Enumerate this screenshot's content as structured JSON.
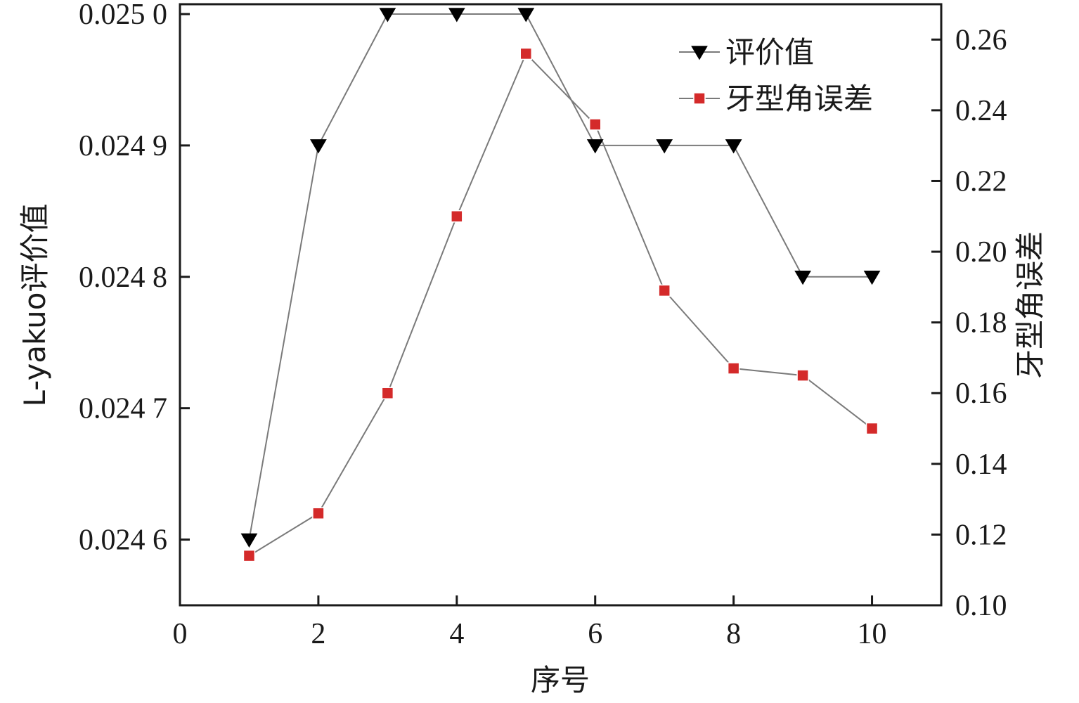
{
  "chart_data": {
    "type": "line",
    "xlabel": "序号",
    "ylabel_left": "L-yakuo评价值",
    "ylabel_right": "牙型角误差",
    "x_ticks": [
      "0",
      "2",
      "4",
      "6",
      "8",
      "10"
    ],
    "y_left_ticks": [
      "0.024 6",
      "0.024 7",
      "0.024 8",
      "0.024 9",
      "0.025 0"
    ],
    "y_right_ticks": [
      "0.10",
      "0.12",
      "0.14",
      "0.16",
      "0.18",
      "0.20",
      "0.22",
      "0.24",
      "0.26"
    ],
    "xlim": [
      0,
      11
    ],
    "ylim_left": [
      0.02455,
      0.0250075
    ],
    "ylim_right": [
      0.1,
      0.27
    ],
    "grid": false,
    "legend_position": "top-right",
    "series": [
      {
        "name": "评价值",
        "axis": "left",
        "marker": "triangle-down",
        "color": "#000000",
        "x": [
          1,
          2,
          3,
          4,
          5,
          6,
          7,
          8,
          9,
          10
        ],
        "values": [
          0.0246,
          0.0249,
          0.025,
          0.025,
          0.025,
          0.0249,
          0.0249,
          0.0249,
          0.0248,
          0.0248
        ]
      },
      {
        "name": "牙型角误差",
        "axis": "right",
        "marker": "square",
        "color": "#d42a2a",
        "x": [
          1,
          2,
          3,
          4,
          5,
          6,
          7,
          8,
          9,
          10
        ],
        "values": [
          0.114,
          0.126,
          0.16,
          0.21,
          0.256,
          0.236,
          0.189,
          0.167,
          0.165,
          0.15
        ]
      }
    ],
    "line_color": "#7a7a7a"
  }
}
